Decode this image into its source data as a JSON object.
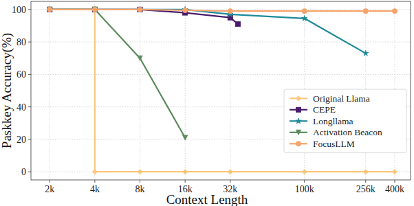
{
  "chart_data": {
    "type": "line",
    "x_label": "Context Length",
    "y_label": "Paskkey Accuracy(%)",
    "log": "x",
    "grid": true,
    "legend": "lower right",
    "xlim": [
      1500,
      510000
    ],
    "ylim": [
      -5,
      105
    ],
    "xticks": [
      {
        "value": 2000,
        "label": "2k"
      },
      {
        "value": 4000,
        "label": "4k"
      },
      {
        "value": 8000,
        "label": "8k"
      },
      {
        "value": 16000,
        "label": "16k"
      },
      {
        "value": 32000,
        "label": "32k"
      },
      {
        "value": 100000,
        "label": "100k"
      },
      {
        "value": 256000,
        "label": "256k"
      },
      {
        "value": 400000,
        "label": "400k"
      }
    ],
    "yticks": [
      0,
      20,
      40,
      60,
      80,
      100
    ],
    "series": [
      {
        "name": "Original Llama",
        "color": "#fcc77e",
        "marker": "diamond",
        "x": [
          2000,
          4000,
          4000,
          8000,
          16000,
          32000,
          100000,
          256000,
          400000
        ],
        "values": [
          100,
          100,
          0,
          0,
          0,
          0,
          0,
          0,
          0
        ]
      },
      {
        "name": "CEPE",
        "color": "#4a1c6b",
        "marker": "square",
        "x": [
          2000,
          4000,
          8000,
          16000,
          32000,
          36000
        ],
        "values": [
          100,
          100,
          100,
          98,
          95,
          91
        ]
      },
      {
        "name": "Longllama",
        "color": "#1e8a9a",
        "marker": "star",
        "x": [
          2000,
          4000,
          8000,
          16000,
          32000,
          100000,
          256000
        ],
        "values": [
          100,
          100,
          100,
          100,
          97,
          94.5,
          73
        ]
      },
      {
        "name": "Activation Beacon",
        "color": "#5b8a5c",
        "marker": "triangle_down",
        "x": [
          2000,
          4000,
          8000,
          16000
        ],
        "values": [
          100,
          100,
          70,
          21
        ]
      },
      {
        "name": "FocusLLM",
        "color": "#f5a46c",
        "marker": "circle",
        "x": [
          2000,
          4000,
          8000,
          16000,
          32000,
          100000,
          256000,
          400000
        ],
        "values": [
          100,
          100,
          100,
          99.5,
          99,
          99,
          99,
          99
        ]
      }
    ]
  }
}
